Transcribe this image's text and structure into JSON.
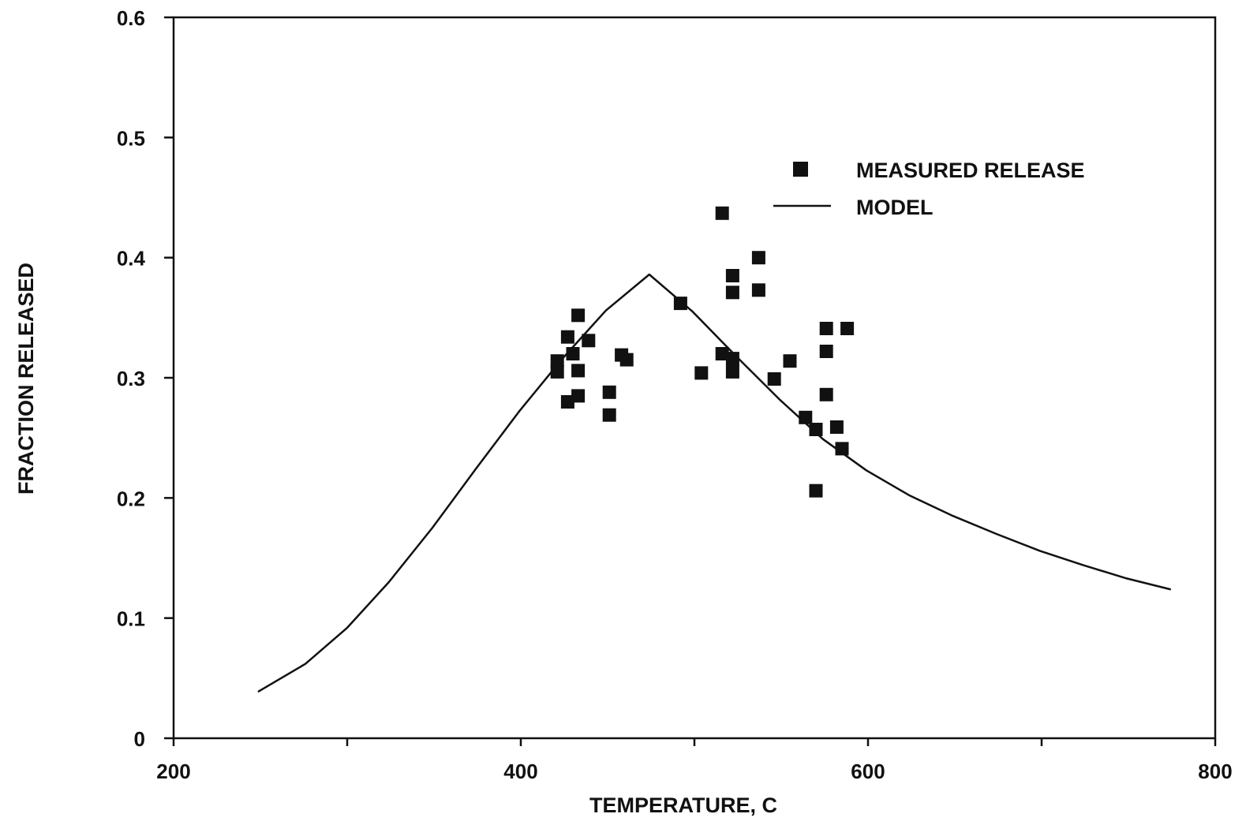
{
  "chart_data": {
    "type": "scatter",
    "xlabel": "TEMPERATURE, C",
    "ylabel": "FRACTION RELEASED",
    "xlim": [
      200,
      800
    ],
    "ylim": [
      0,
      0.6
    ],
    "x_major_ticks": [
      200,
      400,
      600,
      800
    ],
    "x_minor_ticks": [
      300,
      500,
      700
    ],
    "x_tick_labels": [
      "200",
      "400",
      "600",
      "800"
    ],
    "y_ticks": [
      0,
      0.1,
      0.2,
      0.3,
      0.4,
      0.5,
      0.6
    ],
    "y_tick_labels": [
      "0",
      "0.1",
      "0.2",
      "0.3",
      "0.4",
      "0.5",
      "0.6"
    ],
    "grid": false,
    "legend_position": "upper-right",
    "legend": {
      "measured_label": "MEASURED RELEASE",
      "model_label": "MODEL"
    },
    "series": [
      {
        "name": "MEASURED RELEASE",
        "type": "scatter",
        "marker": "square",
        "points": [
          [
            421,
            0.314
          ],
          [
            421,
            0.305
          ],
          [
            427,
            0.334
          ],
          [
            427,
            0.28
          ],
          [
            430,
            0.32
          ],
          [
            433,
            0.352
          ],
          [
            433,
            0.306
          ],
          [
            433,
            0.285
          ],
          [
            439,
            0.331
          ],
          [
            451,
            0.288
          ],
          [
            451,
            0.269
          ],
          [
            458,
            0.319
          ],
          [
            461,
            0.315
          ],
          [
            492,
            0.362
          ],
          [
            504,
            0.304
          ],
          [
            516,
            0.437
          ],
          [
            516,
            0.32
          ],
          [
            522,
            0.385
          ],
          [
            522,
            0.371
          ],
          [
            522,
            0.316
          ],
          [
            522,
            0.305
          ],
          [
            537,
            0.4
          ],
          [
            537,
            0.373
          ],
          [
            546,
            0.299
          ],
          [
            555,
            0.314
          ],
          [
            564,
            0.267
          ],
          [
            570,
            0.257
          ],
          [
            570,
            0.206
          ],
          [
            576,
            0.341
          ],
          [
            576,
            0.322
          ],
          [
            576,
            0.286
          ],
          [
            582,
            0.259
          ],
          [
            585,
            0.241
          ],
          [
            588,
            0.341
          ]
        ]
      },
      {
        "name": "MODEL",
        "type": "line",
        "points": [
          [
            249,
            0.039
          ],
          [
            276,
            0.062
          ],
          [
            300,
            0.092
          ],
          [
            324,
            0.13
          ],
          [
            349,
            0.175
          ],
          [
            374,
            0.224
          ],
          [
            399,
            0.272
          ],
          [
            424,
            0.316
          ],
          [
            449,
            0.356
          ],
          [
            474,
            0.386
          ],
          [
            499,
            0.355
          ],
          [
            524,
            0.318
          ],
          [
            549,
            0.282
          ],
          [
            574,
            0.249
          ],
          [
            599,
            0.223
          ],
          [
            624,
            0.202
          ],
          [
            649,
            0.185
          ],
          [
            674,
            0.17
          ],
          [
            699,
            0.156
          ],
          [
            724,
            0.144
          ],
          [
            749,
            0.133
          ],
          [
            774,
            0.124
          ]
        ]
      }
    ]
  }
}
